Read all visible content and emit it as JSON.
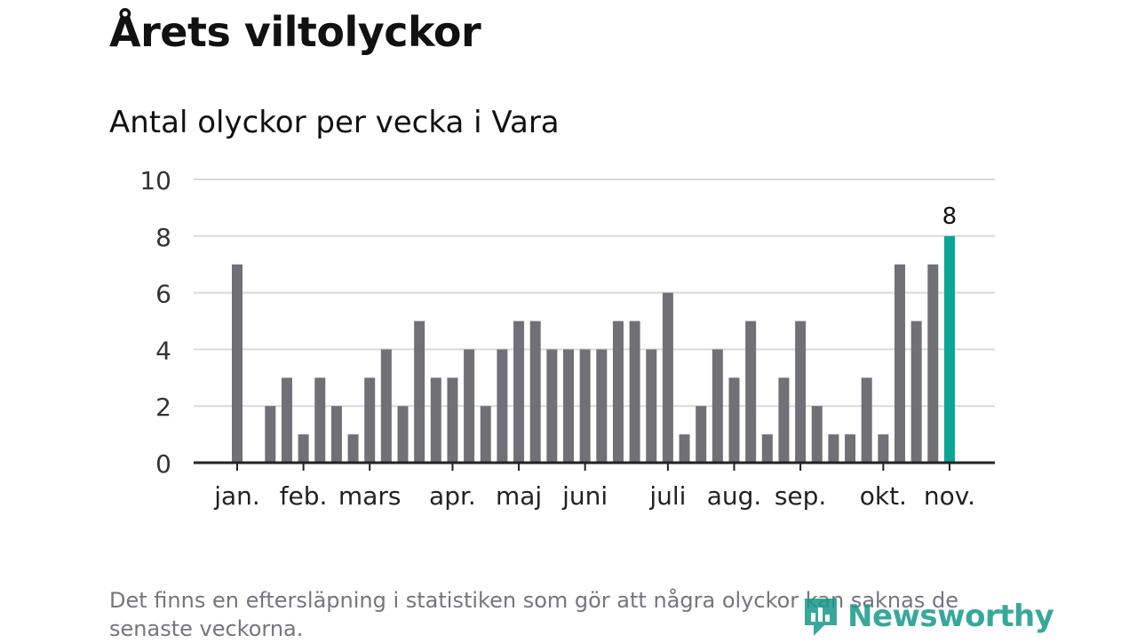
{
  "header": {
    "title": "Årets viltolyckor",
    "subtitle": "Antal olyckor per vecka i Vara"
  },
  "footer": {
    "note": "Det finns en eftersläpning i statistiken som gör att några olyckor kan saknas de senaste veckorna.",
    "brand": "Newsworthy"
  },
  "colors": {
    "bar": "#717077",
    "highlight": "#0aa595",
    "grid": "#d9d9d9",
    "axis": "#222222",
    "brand": "#16998a"
  },
  "chart_data": {
    "type": "bar",
    "title": "Antal olyckor per vecka i Vara",
    "xlabel": "",
    "ylabel": "",
    "ylim": [
      0,
      10
    ],
    "yticks": [
      0,
      2,
      4,
      6,
      8,
      10
    ],
    "grid": true,
    "values": [
      7,
      0,
      2,
      3,
      1,
      3,
      2,
      1,
      3,
      4,
      2,
      5,
      3,
      3,
      4,
      2,
      4,
      5,
      5,
      4,
      4,
      4,
      4,
      5,
      5,
      4,
      6,
      1,
      2,
      4,
      3,
      5,
      1,
      3,
      5,
      2,
      1,
      1,
      3,
      1,
      7,
      5,
      7,
      8
    ],
    "highlight_index": 43,
    "data_labels": [
      {
        "index": 43,
        "text": "8"
      }
    ],
    "month_labels": [
      {
        "label": "jan.",
        "week": 0
      },
      {
        "label": "feb.",
        "week": 4
      },
      {
        "label": "mars",
        "week": 8
      },
      {
        "label": "apr.",
        "week": 13
      },
      {
        "label": "maj",
        "week": 17
      },
      {
        "label": "juni",
        "week": 21
      },
      {
        "label": "juli",
        "week": 26
      },
      {
        "label": "aug.",
        "week": 30
      },
      {
        "label": "sep.",
        "week": 34
      },
      {
        "label": "okt.",
        "week": 39
      },
      {
        "label": "nov.",
        "week": 43
      }
    ]
  }
}
